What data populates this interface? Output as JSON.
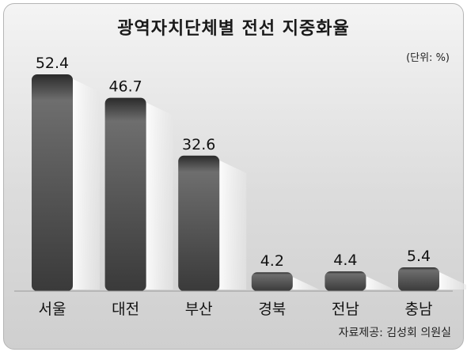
{
  "title": "광역자치단체별 전선 지중화율",
  "unit": "(단위: %)",
  "source": "자료제공: 김성회 의원실",
  "chart_data": {
    "type": "bar",
    "title": "광역자치단체별 전선 지중화율",
    "categories": [
      "서울",
      "대전",
      "부산",
      "경북",
      "전남",
      "충남"
    ],
    "values": [
      52.4,
      46.7,
      32.6,
      4.2,
      4.4,
      5.4
    ],
    "value_labels": [
      "52.4",
      "46.7",
      "32.6",
      "4.2",
      "4.4",
      "5.4"
    ],
    "ylim": [
      0,
      60
    ],
    "grid": false,
    "bar_color": "#4a4a4a"
  }
}
